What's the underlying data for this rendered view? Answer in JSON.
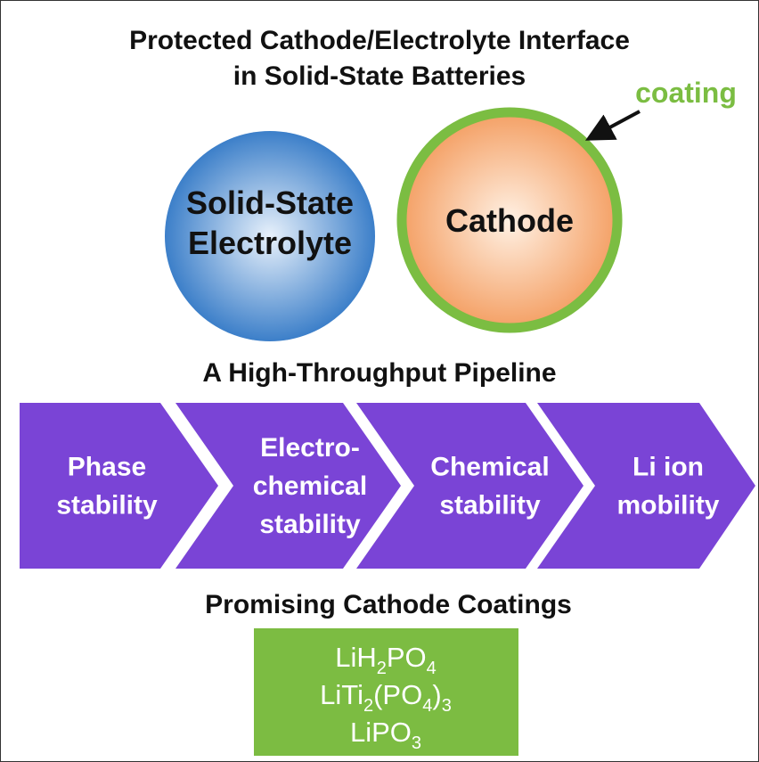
{
  "header": {
    "title_lines": [
      "Protected Cathode/Electrolyte Interface",
      "in Solid-State Batteries"
    ]
  },
  "particles": {
    "electrolyte_lines": [
      "Solid-State",
      "Electrolyte"
    ],
    "cathode": "Cathode",
    "coating": "coating"
  },
  "pipeline": {
    "title": "A High-Throughput Pipeline",
    "steps": [
      [
        "Phase",
        "stability"
      ],
      [
        "Electro-",
        "chemical",
        "stability"
      ],
      [
        "Chemical",
        "stability"
      ],
      [
        "Li ion",
        "mobility"
      ]
    ]
  },
  "coatings": {
    "title": "Promising Cathode Coatings",
    "formulas": [
      [
        "LiH",
        "2",
        "PO",
        "4"
      ],
      [
        "LiTi",
        "2",
        "(PO",
        "4",
        ")",
        "3"
      ],
      [
        "LiPO",
        "3"
      ]
    ]
  }
}
